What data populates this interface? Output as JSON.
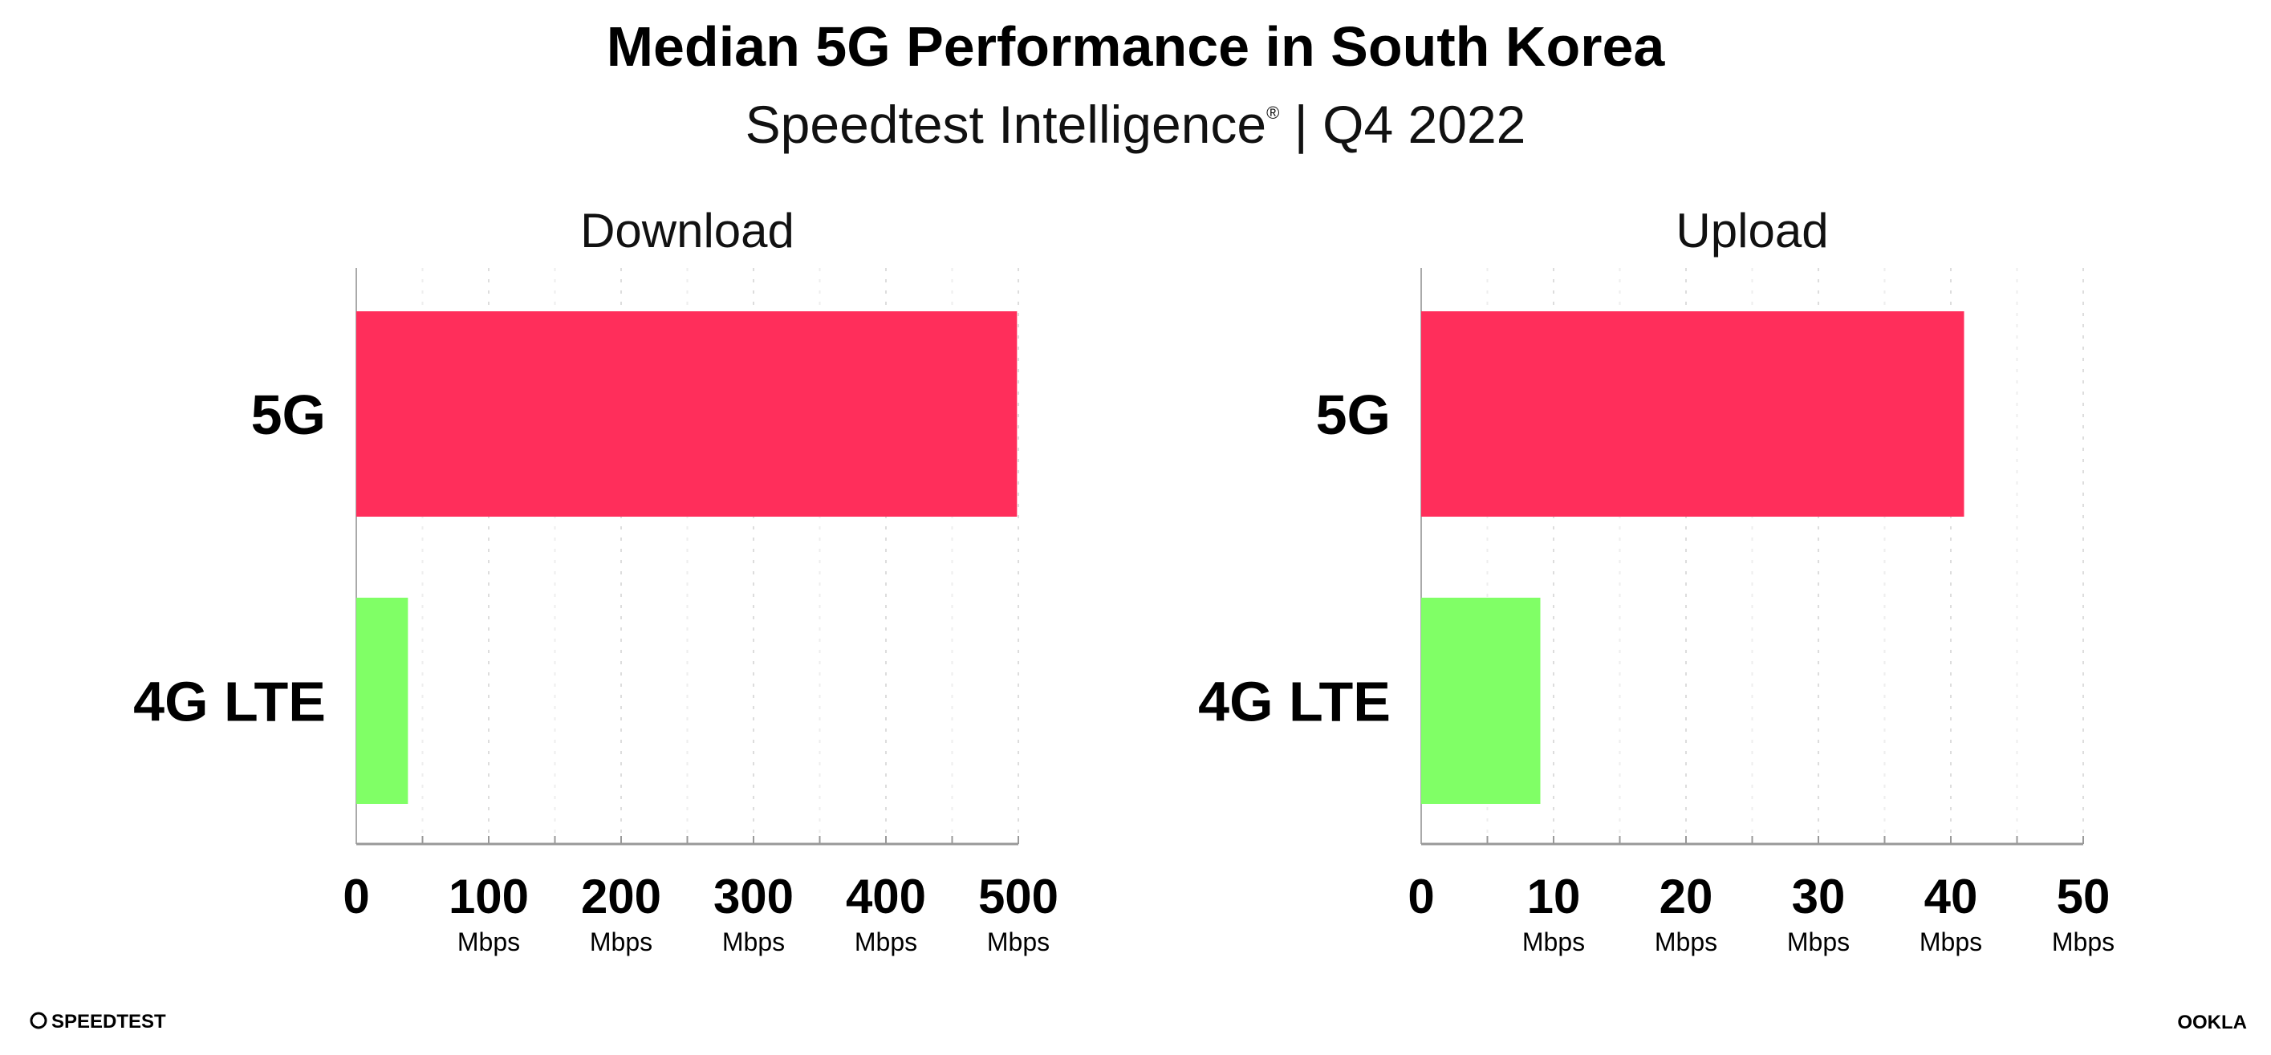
{
  "chart_data": [
    {
      "type": "bar",
      "orientation": "horizontal",
      "title": "Download",
      "categories": [
        "5G",
        "4G LTE"
      ],
      "values": [
        499,
        39
      ],
      "colors": [
        "#ff2e5b",
        "#80ff66"
      ],
      "xlim": [
        0,
        500
      ],
      "xticks": [
        "0",
        "100",
        "200",
        "300",
        "400",
        "500"
      ],
      "xtick_units": [
        "",
        "Mbps",
        "Mbps",
        "Mbps",
        "Mbps",
        "Mbps"
      ],
      "grid": "vertical dotted"
    },
    {
      "type": "bar",
      "orientation": "horizontal",
      "title": "Upload",
      "categories": [
        "5G",
        "4G LTE"
      ],
      "values": [
        41,
        9
      ],
      "colors": [
        "#ff2e5b",
        "#80ff66"
      ],
      "xlim": [
        0,
        50
      ],
      "xticks": [
        "0",
        "10",
        "20",
        "30",
        "40",
        "50"
      ],
      "xtick_units": [
        "",
        "Mbps",
        "Mbps",
        "Mbps",
        "Mbps",
        "Mbps"
      ],
      "grid": "vertical dotted"
    }
  ],
  "header": {
    "title": "Median 5G Performance in South Korea",
    "subtitle": "Speedtest Intelligence",
    "subtitle_mark": "®",
    "subtitle_period": " | Q4 2022"
  },
  "footer": {
    "left_logo": "SPEEDTEST",
    "right_logo": "OOKLA"
  }
}
